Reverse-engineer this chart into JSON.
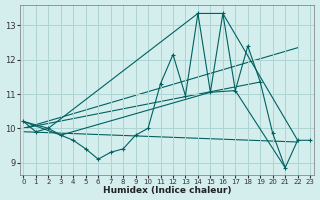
{
  "xlabel": "Humidex (Indice chaleur)",
  "bg_color": "#d4eeee",
  "grid_color": "#aed4d4",
  "line_color": "#006060",
  "x_ticks": [
    0,
    1,
    2,
    3,
    4,
    5,
    6,
    7,
    8,
    9,
    10,
    11,
    12,
    13,
    14,
    15,
    16,
    17,
    18,
    19,
    20,
    21,
    22,
    23
  ],
  "y_ticks": [
    9,
    10,
    11,
    12,
    13
  ],
  "xlim": [
    -0.3,
    23.3
  ],
  "ylim": [
    8.65,
    13.6
  ],
  "main_x": [
    0,
    1,
    2,
    3,
    4,
    5,
    6,
    7,
    8,
    9,
    10,
    11,
    12,
    13,
    14,
    15,
    16,
    17,
    18,
    19,
    20,
    21,
    22,
    23
  ],
  "main_y": [
    10.2,
    9.9,
    10.0,
    9.8,
    9.65,
    9.4,
    9.1,
    9.3,
    9.4,
    9.8,
    10.0,
    11.3,
    12.15,
    10.95,
    13.35,
    11.05,
    13.35,
    11.1,
    12.4,
    11.35,
    9.85,
    8.85,
    9.65,
    9.65
  ],
  "line2_x": [
    0,
    2,
    14,
    16,
    22
  ],
  "line2_y": [
    10.2,
    10.0,
    13.35,
    13.35,
    9.65
  ],
  "line3_x": [
    0,
    3,
    15,
    17,
    21
  ],
  "line3_y": [
    10.2,
    9.8,
    11.05,
    11.1,
    8.85
  ],
  "trend1_x": [
    0,
    22
  ],
  "trend1_y": [
    10.0,
    12.35
  ],
  "trend2_x": [
    0,
    19
  ],
  "trend2_y": [
    10.0,
    11.35
  ],
  "trend3_x": [
    0,
    22
  ],
  "trend3_y": [
    9.9,
    9.6
  ]
}
